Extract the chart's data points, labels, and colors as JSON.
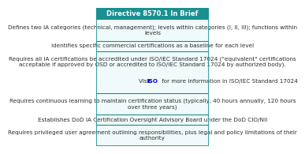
{
  "title": "Directive 8570.1 In Brief",
  "title_bg": "#1a9090",
  "title_color": "#ffffff",
  "border_color": "#1a9090",
  "cell_bg": "#f0fafa",
  "rows": [
    "Defines two IA categories (technical, management); levels within categories (I, II, III); functions within\nlevels",
    "Identifies specific commercial certifications as a baseline for each level",
    "Requires all IA certifications be accredited under ISO/IEC Standard 17024 (\"equivalent\" certifications\nacceptable if approved by OSD or accredited to ISO/IEC Standard 17024 by authorized body).\n\nVisit ISO for more information in ISO/IEC Standard 17024",
    "Requires continuous learning to maintain certification status (typically, 40 hours annually, 120 hours\nover three years)",
    "Establishes DoD IA Certification Oversight Advisory Board under the DoD CIO/NII",
    "Requires privileged user agreement outlining responsibilities, plus legal and policy limitations of their\nauthority"
  ],
  "iso_link_row": 2,
  "text_color": "#2c2c2c",
  "link_color": "#0000cc",
  "font_size": 5.2,
  "title_font_size": 6.0
}
